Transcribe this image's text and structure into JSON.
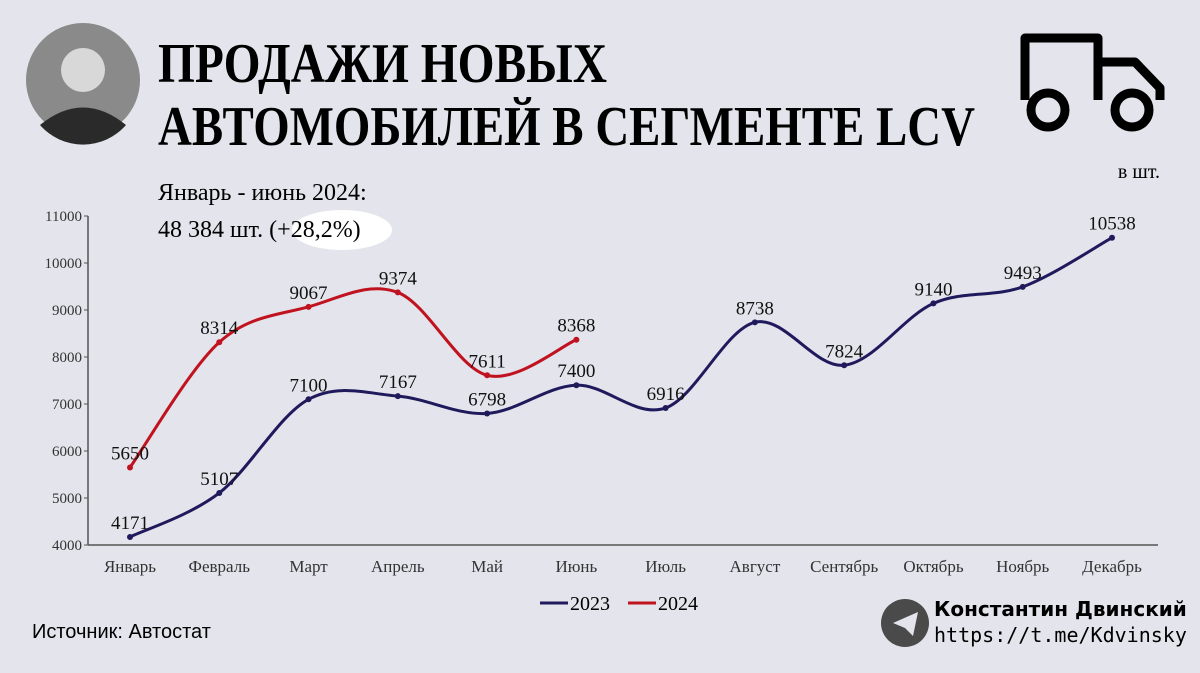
{
  "chart_data": {
    "type": "line",
    "title_lines": [
      "ПРОДАЖИ НОВЫХ",
      "АВТОМОБИЛЕЙ В СЕГМЕНТЕ LCV"
    ],
    "unit": "в шт.",
    "annotation_lines": [
      "Январь - июнь 2024:",
      "48 384 шт. (+28,2%)"
    ],
    "source": "Источник: Автостат",
    "author": "Константин Двинский",
    "author_link": "https://t.me/Kdvinsky",
    "categories": [
      "Январь",
      "Февраль",
      "Март",
      "Апрель",
      "Май",
      "Июнь",
      "Июль",
      "Август",
      "Сентябрь",
      "Октябрь",
      "Ноябрь",
      "Декабрь"
    ],
    "series": [
      {
        "name": "2023",
        "color": "#1f1a5c",
        "values": [
          4171,
          5107,
          7100,
          7167,
          6798,
          7400,
          6916,
          8738,
          7824,
          9140,
          9493,
          10538
        ]
      },
      {
        "name": "2024",
        "color": "#c0121f",
        "values": [
          5650,
          8314,
          9067,
          9374,
          7611,
          8368,
          null,
          null,
          null,
          null,
          null,
          null
        ]
      }
    ],
    "ylim": [
      4000,
      11000
    ],
    "yticks": [
      4000,
      5000,
      6000,
      7000,
      8000,
      9000,
      10000,
      11000
    ],
    "grid": false
  }
}
